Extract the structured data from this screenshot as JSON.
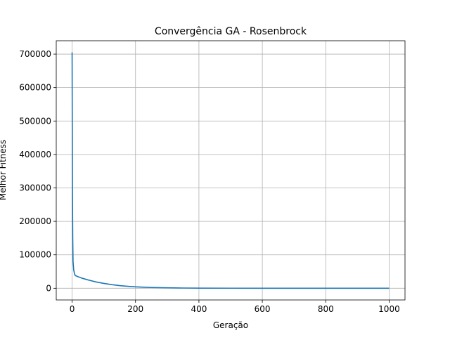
{
  "chart_data": {
    "type": "line",
    "title": "Convergência GA - Rosenbrock",
    "xlabel": "Geração",
    "ylabel": "Melhor Fitness",
    "xlim": [
      -50,
      1050
    ],
    "ylim": [
      -35000,
      740000
    ],
    "xticks": [
      0,
      200,
      400,
      600,
      800,
      1000
    ],
    "yticks": [
      0,
      100000,
      200000,
      300000,
      400000,
      500000,
      600000,
      700000
    ],
    "grid": true,
    "series": [
      {
        "color": "#1f77b4",
        "x": [
          0,
          1,
          2,
          3,
          5,
          8,
          10,
          20,
          30,
          50,
          75,
          100,
          125,
          150,
          175,
          200,
          225,
          250,
          300,
          350,
          400,
          500,
          600,
          700,
          800,
          900,
          1000
        ],
        "y": [
          705000,
          300000,
          150000,
          80000,
          55000,
          42000,
          38000,
          34000,
          30500,
          25000,
          19000,
          14500,
          10800,
          8000,
          5900,
          4300,
          3100,
          2300,
          1300,
          700,
          400,
          150,
          60,
          30,
          15,
          8,
          5
        ]
      }
    ]
  }
}
